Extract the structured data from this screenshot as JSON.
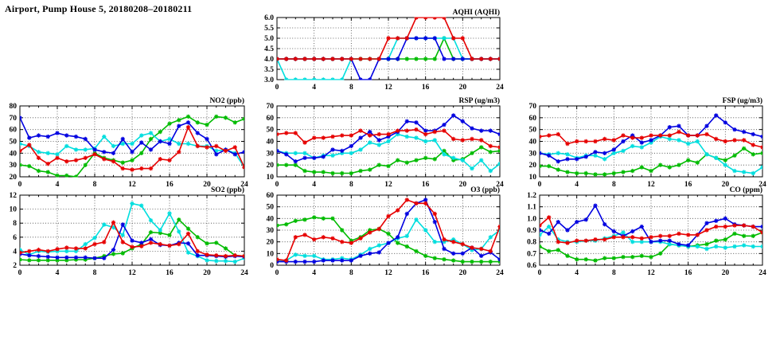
{
  "title": "Airport, Pump House 5, 20180208–20180211",
  "colors": {
    "green": "#00bb00",
    "cyan": "#00dede",
    "blue": "#0000e0",
    "red": "#e60000",
    "axis": "#000000",
    "grid": "#444444"
  },
  "hours": [
    0,
    1,
    2,
    3,
    4,
    5,
    6,
    7,
    8,
    9,
    10,
    11,
    12,
    13,
    14,
    15,
    16,
    17,
    18,
    19,
    20,
    21,
    22,
    23,
    24
  ],
  "chart_data": [
    {
      "id": "aqhi",
      "type": "line",
      "title": "AQHI (AQHI)",
      "ylim": [
        3,
        6
      ],
      "ytick_step": 0.5,
      "ydecimals": 1,
      "xlim": [
        0,
        24
      ],
      "xtick_step": 4,
      "grid": true,
      "legend": "none",
      "series": [
        {
          "name": "green",
          "values": [
            4,
            4,
            4,
            4,
            4,
            4,
            4,
            4,
            4,
            4,
            4,
            4,
            4,
            4,
            4,
            4,
            4,
            4,
            5,
            4,
            4,
            4,
            4,
            4,
            4
          ]
        },
        {
          "name": "cyan",
          "values": [
            4,
            3,
            3,
            3,
            3,
            3,
            3,
            3,
            4,
            4,
            4,
            4,
            4,
            5,
            5,
            5,
            5,
            5,
            5,
            5,
            4,
            4,
            4,
            4,
            4
          ]
        },
        {
          "name": "blue",
          "values": [
            4,
            4,
            4,
            4,
            4,
            4,
            4,
            4,
            4,
            3,
            3,
            4,
            4,
            4,
            5,
            5,
            5,
            5,
            4,
            4,
            4,
            4,
            4,
            4,
            4
          ]
        },
        {
          "name": "red",
          "values": [
            4,
            4,
            4,
            4,
            4,
            4,
            4,
            4,
            4,
            4,
            4,
            4,
            5,
            5,
            5,
            6,
            6,
            6,
            6,
            5,
            5,
            4,
            4,
            4,
            4
          ]
        }
      ]
    },
    {
      "id": "no2",
      "type": "line",
      "title": "NO2 (ppb)",
      "ylim": [
        20,
        80
      ],
      "ytick_step": 10,
      "ydecimals": 0,
      "xlim": [
        0,
        24
      ],
      "xtick_step": 4,
      "grid": true,
      "legend": "none",
      "series": [
        {
          "name": "green",
          "values": [
            30,
            29,
            25,
            24,
            21,
            21,
            20,
            30,
            40,
            36,
            34,
            32,
            34,
            40,
            52,
            58,
            65,
            68,
            71,
            66,
            64,
            71,
            70,
            66,
            69
          ]
        },
        {
          "name": "cyan",
          "values": [
            48,
            46,
            41,
            40,
            39,
            46,
            43,
            43,
            44,
            54,
            46,
            48,
            48,
            55,
            57,
            50,
            52,
            48,
            48,
            46,
            46,
            42,
            43,
            40,
            28
          ]
        },
        {
          "name": "blue",
          "values": [
            70,
            53,
            55,
            54,
            57,
            55,
            54,
            52,
            43,
            41,
            40,
            52,
            41,
            49,
            43,
            50,
            48,
            63,
            66,
            57,
            52,
            39,
            43,
            39,
            41
          ]
        },
        {
          "name": "red",
          "values": [
            42,
            47,
            36,
            31,
            36,
            33,
            34,
            36,
            39,
            35,
            33,
            27,
            26,
            27,
            27,
            35,
            34,
            41,
            62,
            46,
            45,
            46,
            42,
            45,
            28
          ]
        }
      ]
    },
    {
      "id": "rsp",
      "type": "line",
      "title": "RSP (ug/m3)",
      "ylim": [
        10,
        70
      ],
      "ytick_step": 10,
      "ydecimals": 0,
      "xlim": [
        0,
        24
      ],
      "xtick_step": 4,
      "grid": true,
      "legend": "none",
      "series": [
        {
          "name": "green",
          "values": [
            20,
            20,
            20,
            15,
            14,
            14,
            13,
            13,
            13,
            15,
            16,
            20,
            19,
            24,
            22,
            24,
            26,
            25,
            32,
            24,
            25,
            30,
            35,
            31,
            32
          ]
        },
        {
          "name": "cyan",
          "values": [
            32,
            30,
            30,
            30,
            26,
            28,
            28,
            30,
            30,
            33,
            39,
            37,
            40,
            46,
            44,
            43,
            40,
            41,
            29,
            26,
            24,
            17,
            24,
            15,
            21
          ]
        },
        {
          "name": "blue",
          "values": [
            32,
            29,
            23,
            26,
            26,
            27,
            33,
            32,
            36,
            43,
            48,
            41,
            44,
            48,
            57,
            56,
            49,
            49,
            54,
            62,
            57,
            51,
            49,
            49,
            46
          ]
        },
        {
          "name": "red",
          "values": [
            46,
            47,
            47,
            39,
            43,
            43,
            44,
            45,
            45,
            49,
            45,
            46,
            46,
            49,
            49,
            50,
            46,
            48,
            49,
            42,
            41,
            42,
            41,
            36,
            35
          ]
        }
      ]
    },
    {
      "id": "fsp",
      "type": "line",
      "title": "FSP (ug/m3)",
      "ylim": [
        10,
        70
      ],
      "ytick_step": 10,
      "ydecimals": 0,
      "xlim": [
        0,
        24
      ],
      "xtick_step": 4,
      "grid": true,
      "legend": "none",
      "series": [
        {
          "name": "green",
          "values": [
            19,
            19,
            16,
            14,
            13,
            13,
            12,
            12,
            13,
            14,
            15,
            18,
            15,
            20,
            18,
            20,
            24,
            22,
            29,
            26,
            24,
            28,
            34,
            29,
            30
          ]
        },
        {
          "name": "cyan",
          "values": [
            30,
            29,
            30,
            29,
            26,
            28,
            28,
            25,
            30,
            32,
            36,
            35,
            39,
            44,
            42,
            41,
            38,
            40,
            29,
            26,
            20,
            15,
            14,
            13,
            18
          ]
        },
        {
          "name": "blue",
          "values": [
            30,
            28,
            23,
            25,
            25,
            27,
            31,
            30,
            33,
            40,
            45,
            39,
            41,
            45,
            52,
            53,
            45,
            45,
            53,
            62,
            56,
            50,
            48,
            46,
            44
          ]
        },
        {
          "name": "red",
          "values": [
            44,
            45,
            46,
            38,
            40,
            40,
            40,
            42,
            41,
            45,
            43,
            43,
            45,
            45,
            45,
            48,
            45,
            45,
            46,
            42,
            40,
            41,
            41,
            37,
            35
          ]
        }
      ]
    },
    {
      "id": "so2",
      "type": "line",
      "title": "SO2 (ppb)",
      "ylim": [
        2,
        12
      ],
      "ytick_step": 2,
      "ydecimals": 0,
      "xlim": [
        0,
        24
      ],
      "xtick_step": 4,
      "grid": true,
      "legend": "none",
      "series": [
        {
          "name": "green",
          "values": [
            2.8,
            2.7,
            2.7,
            2.7,
            2.7,
            2.7,
            2.8,
            2.8,
            3.0,
            3.3,
            3.6,
            3.7,
            4.4,
            5.0,
            6.7,
            6.6,
            6.3,
            8.5,
            7.2,
            6.0,
            5.1,
            5.2,
            4.4,
            3.4,
            3.3
          ]
        },
        {
          "name": "cyan",
          "values": [
            4.2,
            3.5,
            4.0,
            3.9,
            4.0,
            4.0,
            4.0,
            5.0,
            5.9,
            7.8,
            7.4,
            6.3,
            10.8,
            10.5,
            8.4,
            7.0,
            9.4,
            6.8,
            3.8,
            3.3,
            2.7,
            2.6,
            2.6,
            2.5,
            3.0
          ]
        },
        {
          "name": "blue",
          "values": [
            3.6,
            3.4,
            3.3,
            3.2,
            3.1,
            3.1,
            3.1,
            3.1,
            3.0,
            3.0,
            4.2,
            7.8,
            5.5,
            5.2,
            5.7,
            4.9,
            4.8,
            5.2,
            5.1,
            3.4,
            3.4,
            3.3,
            3.2,
            3.3,
            3.2
          ]
        },
        {
          "name": "red",
          "values": [
            3.8,
            4.0,
            4.2,
            4.0,
            4.3,
            4.5,
            4.4,
            4.4,
            5.0,
            5.3,
            8.1,
            5.3,
            4.6,
            4.7,
            5.2,
            5.0,
            4.8,
            5.0,
            6.5,
            4.0,
            3.5,
            3.4,
            3.3,
            3.4,
            3.3
          ]
        }
      ]
    },
    {
      "id": "o3",
      "type": "line",
      "title": "O3 (ppb)",
      "ylim": [
        0,
        60
      ],
      "ytick_step": 10,
      "ydecimals": 0,
      "xlim": [
        0,
        24
      ],
      "xtick_step": 4,
      "grid": true,
      "legend": "none",
      "series": [
        {
          "name": "green",
          "values": [
            34,
            35,
            38,
            39,
            41,
            40,
            40,
            30,
            21,
            24,
            30,
            31,
            27,
            19,
            16,
            12,
            8,
            6,
            5,
            4,
            3,
            3,
            3,
            3,
            3
          ]
        },
        {
          "name": "cyan",
          "values": [
            4,
            4,
            9,
            8,
            8,
            5,
            5,
            6,
            5,
            9,
            14,
            17,
            19,
            23,
            25,
            39,
            30,
            20,
            20,
            22,
            18,
            13,
            14,
            24,
            30
          ]
        },
        {
          "name": "blue",
          "values": [
            3,
            3,
            3,
            3,
            3,
            4,
            4,
            4,
            4,
            8,
            10,
            11,
            19,
            24,
            44,
            53,
            56,
            37,
            14,
            10,
            10,
            15,
            8,
            11,
            5
          ]
        },
        {
          "name": "red",
          "values": [
            5,
            4,
            24,
            26,
            22,
            24,
            23,
            20,
            19,
            23,
            28,
            31,
            42,
            47,
            56,
            53,
            53,
            44,
            22,
            20,
            18,
            15,
            14,
            12,
            33
          ]
        }
      ]
    },
    {
      "id": "co",
      "type": "line",
      "title": "CO (ppm)",
      "ylim": [
        0.6,
        1.2
      ],
      "ytick_step": 0.1,
      "ydecimals": 1,
      "xlim": [
        0,
        24
      ],
      "xtick_step": 4,
      "grid": true,
      "legend": "none",
      "series": [
        {
          "name": "green",
          "values": [
            0.76,
            0.72,
            0.73,
            0.68,
            0.65,
            0.65,
            0.64,
            0.66,
            0.66,
            0.67,
            0.67,
            0.68,
            0.67,
            0.7,
            0.78,
            0.77,
            0.76,
            0.77,
            0.78,
            0.81,
            0.82,
            0.87,
            0.85,
            0.85,
            0.88
          ]
        },
        {
          "name": "cyan",
          "values": [
            0.86,
            0.93,
            0.82,
            0.8,
            0.8,
            0.81,
            0.81,
            0.83,
            0.85,
            0.88,
            0.8,
            0.8,
            0.8,
            0.8,
            0.78,
            0.77,
            0.76,
            0.76,
            0.74,
            0.76,
            0.75,
            0.76,
            0.77,
            0.76,
            0.76
          ]
        },
        {
          "name": "blue",
          "values": [
            0.9,
            0.87,
            0.97,
            0.9,
            0.97,
            0.99,
            1.11,
            0.95,
            0.89,
            0.85,
            0.89,
            0.93,
            0.8,
            0.81,
            0.81,
            0.78,
            0.77,
            0.86,
            0.96,
            0.98,
            1.0,
            0.95,
            0.94,
            0.93,
            0.93
          ]
        },
        {
          "name": "red",
          "values": [
            0.94,
            1.01,
            0.8,
            0.79,
            0.81,
            0.81,
            0.82,
            0.82,
            0.84,
            0.84,
            0.84,
            0.83,
            0.84,
            0.85,
            0.85,
            0.87,
            0.86,
            0.86,
            0.9,
            0.93,
            0.93,
            0.94,
            0.94,
            0.93,
            0.88
          ]
        }
      ]
    }
  ]
}
